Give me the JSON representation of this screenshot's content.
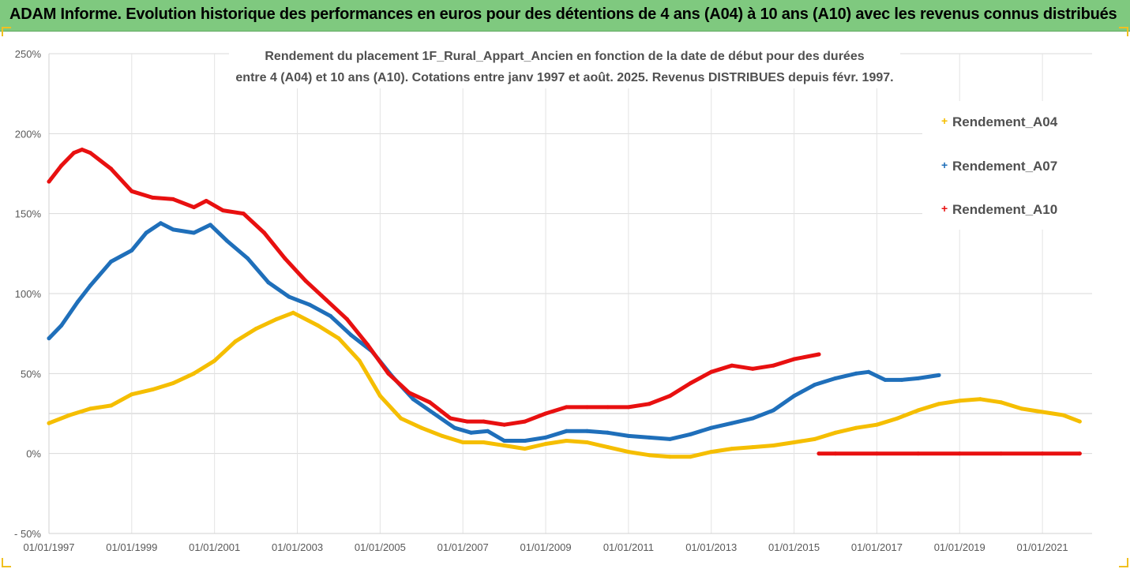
{
  "header": {
    "title": "ADAM Informe. Evolution historique des performances en euros pour des détentions de 4 ans (A04) à 10 ans (A10) avec les revenus connus distribués"
  },
  "chart_data": {
    "type": "line",
    "title_line1": "Rendement du placement 1F_Rural_Appart_Ancien en fonction de la date de début pour des durées",
    "title_line2": "entre 4 (A04) et 10 ans (A10). Cotations entre janv 1997 et août. 2025. Revenus DISTRIBUES depuis févr. 1997.",
    "xlabel": "",
    "ylabel": "",
    "xlim": [
      1997.0,
      2022.0
    ],
    "ylim": [
      -50,
      250
    ],
    "y_ticks": [
      -50,
      0,
      50,
      100,
      150,
      200,
      250
    ],
    "y_tick_labels": [
      "- 50%",
      "0%",
      "50%",
      "100%",
      "150%",
      "200%",
      "250%"
    ],
    "x_tick_labels": [
      "01/01/1997",
      "01/01/1999",
      "01/01/2001",
      "01/01/2003",
      "01/01/2005",
      "01/01/2007",
      "01/01/2009",
      "01/01/2011",
      "01/01/2013",
      "01/01/2015",
      "01/01/2017",
      "01/01/2019",
      "01/01/2021"
    ],
    "x_ticks": [
      1997,
      1999,
      2001,
      2003,
      2005,
      2007,
      2009,
      2011,
      2013,
      2015,
      2017,
      2019,
      2021
    ],
    "grid": true,
    "legend_position": "right",
    "series": [
      {
        "name": "Rendement_A04",
        "color": "#f5be00",
        "x": [
          1997.0,
          1997.5,
          1998.0,
          1998.5,
          1999.0,
          1999.5,
          2000.0,
          2000.5,
          2001.0,
          2001.5,
          2002.0,
          2002.5,
          2002.9,
          2003.5,
          2004.0,
          2004.5,
          2005.0,
          2005.5,
          2006.0,
          2006.5,
          2007.0,
          2007.5,
          2008.0,
          2008.5,
          2009.0,
          2009.5,
          2010.0,
          2010.5,
          2011.0,
          2011.5,
          2012.0,
          2012.5,
          2013.0,
          2013.5,
          2014.0,
          2014.5,
          2015.0,
          2015.5,
          2016.0,
          2016.5,
          2017.0,
          2017.5,
          2018.0,
          2018.5,
          2019.0,
          2019.5,
          2020.0,
          2020.5,
          2021.0,
          2021.5,
          2021.9
        ],
        "y": [
          19,
          24,
          28,
          30,
          37,
          40,
          44,
          50,
          58,
          70,
          78,
          84,
          88,
          80,
          72,
          58,
          36,
          22,
          16,
          11,
          7,
          7,
          5,
          3,
          6,
          8,
          7,
          4,
          1,
          -1,
          -2,
          -2,
          1,
          3,
          4,
          5,
          7,
          9,
          13,
          16,
          18,
          22,
          27,
          31,
          33,
          34,
          32,
          28,
          26,
          24,
          20
        ]
      },
      {
        "name": "Rendement_A07",
        "color": "#1f6fba",
        "x": [
          1997.0,
          1997.3,
          1997.7,
          1998.0,
          1998.5,
          1999.0,
          1999.35,
          1999.7,
          2000.0,
          2000.5,
          2000.9,
          2001.3,
          2001.8,
          2002.3,
          2002.8,
          2003.3,
          2003.8,
          2004.3,
          2004.8,
          2005.3,
          2005.8,
          2006.3,
          2006.8,
          2007.2,
          2007.6,
          2008.0,
          2008.5,
          2009.0,
          2009.5,
          2010.0,
          2010.5,
          2011.0,
          2011.5,
          2012.0,
          2012.5,
          2013.0,
          2013.5,
          2014.0,
          2014.5,
          2015.0,
          2015.5,
          2016.0,
          2016.5,
          2016.8,
          2017.2,
          2017.6,
          2018.0,
          2018.5
        ],
        "y": [
          72,
          80,
          95,
          105,
          120,
          127,
          138,
          144,
          140,
          138,
          143,
          133,
          122,
          107,
          98,
          93,
          86,
          74,
          64,
          48,
          34,
          25,
          16,
          13,
          14,
          8,
          8,
          10,
          14,
          14,
          13,
          11,
          10,
          9,
          12,
          16,
          19,
          22,
          27,
          36,
          43,
          47,
          50,
          51,
          46,
          46,
          47,
          49
        ]
      },
      {
        "name": "Rendement_A10",
        "color": "#e81010",
        "x": [
          1997.0,
          1997.3,
          1997.6,
          1997.8,
          1998.0,
          1998.5,
          1999.0,
          1999.5,
          2000.0,
          2000.5,
          2000.8,
          2001.2,
          2001.7,
          2002.2,
          2002.7,
          2003.2,
          2003.7,
          2004.2,
          2004.7,
          2005.2,
          2005.7,
          2006.2,
          2006.7,
          2007.1,
          2007.5,
          2008.0,
          2008.5,
          2009.0,
          2009.5,
          2010.0,
          2010.5,
          2011.0,
          2011.5,
          2012.0,
          2012.5,
          2013.0,
          2013.5,
          2014.0,
          2014.5,
          2015.0,
          2015.6
        ],
        "y": [
          170,
          180,
          188,
          190,
          188,
          178,
          164,
          160,
          159,
          154,
          158,
          152,
          150,
          138,
          122,
          108,
          96,
          84,
          68,
          50,
          38,
          32,
          22,
          20,
          20,
          18,
          20,
          25,
          29,
          29,
          29,
          29,
          31,
          36,
          44,
          51,
          55,
          53,
          55,
          59,
          62
        ]
      },
      {
        "name": "Rendement_A10",
        "color": "#e81010",
        "in_legend": false,
        "x": [
          2015.6,
          2016.0,
          2017.0,
          2018.0,
          2019.0,
          2020.0,
          2021.0,
          2021.9
        ],
        "y": [
          0,
          0,
          0,
          0,
          0,
          0,
          0,
          0
        ]
      }
    ]
  }
}
